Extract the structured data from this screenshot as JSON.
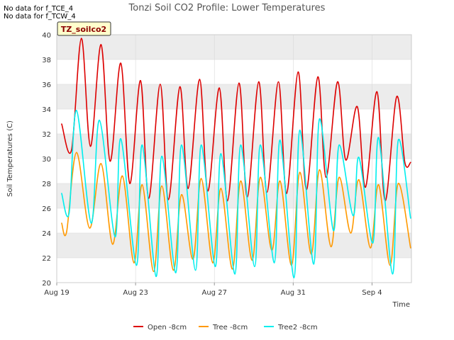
{
  "notices": [
    "No data for f_TCE_4",
    "No data for f_TCW_4"
  ],
  "badge": "TZ_soilco2",
  "colors": {
    "open": "#dd0000",
    "tree": "#ff9900",
    "tree2": "#00eeee",
    "band": "#ececec",
    "grid": "#d8d8d8"
  },
  "chart_data": {
    "type": "line",
    "title": "Tonzi Soil CO2 Profile: Lower Temperatures",
    "xlabel": "Time",
    "ylabel": "Soil Temperatures (C)",
    "ylim": [
      20,
      40
    ],
    "yticks": [
      20,
      22,
      24,
      26,
      28,
      30,
      32,
      34,
      36,
      38,
      40
    ],
    "xlim": [
      "2019-08-19",
      "2019-09-06"
    ],
    "xticks": [
      {
        "date": "2019-08-19",
        "label": "Aug 19"
      },
      {
        "date": "2019-08-23",
        "label": "Aug 23"
      },
      {
        "date": "2019-08-27",
        "label": "Aug 27"
      },
      {
        "date": "2019-08-31",
        "label": "Aug 31"
      },
      {
        "date": "2019-09-04",
        "label": "Sep 4"
      }
    ],
    "grid": true,
    "legend_position": "bottom",
    "series": [
      {
        "name": "Open -8cm",
        "color": "#dd0000",
        "x": [
          "2019-08-19 06:00",
          "2019-08-19 18:00",
          "2019-08-20 06:00",
          "2019-08-20 17:00",
          "2019-08-21 06:00",
          "2019-08-21 17:00",
          "2019-08-22 06:00",
          "2019-08-22 17:00",
          "2019-08-23 06:00",
          "2019-08-23 16:00",
          "2019-08-24 06:00",
          "2019-08-24 16:00",
          "2019-08-25 06:00",
          "2019-08-25 16:00",
          "2019-08-26 06:00",
          "2019-08-26 16:00",
          "2019-08-27 06:00",
          "2019-08-27 16:00",
          "2019-08-28 06:00",
          "2019-08-28 16:00",
          "2019-08-29 06:00",
          "2019-08-29 16:00",
          "2019-08-30 06:00",
          "2019-08-30 16:00",
          "2019-08-31 06:00",
          "2019-08-31 16:00",
          "2019-09-01 06:00",
          "2019-09-01 16:00",
          "2019-09-02 06:00",
          "2019-09-02 16:00",
          "2019-09-03 06:00",
          "2019-09-03 16:00",
          "2019-09-04 06:00",
          "2019-09-04 16:00",
          "2019-09-05 06:00",
          "2019-09-05 16:00",
          "2019-09-05 23:00"
        ],
        "y": [
          32.8,
          30.7,
          39.7,
          31.0,
          39.2,
          29.8,
          37.7,
          28.0,
          36.3,
          26.8,
          36.0,
          26.7,
          35.8,
          27.6,
          36.4,
          27.4,
          35.7,
          26.6,
          36.1,
          26.9,
          36.2,
          27.3,
          36.2,
          27.2,
          37.0,
          27.5,
          36.6,
          28.5,
          36.2,
          29.9,
          34.2,
          27.7,
          35.4,
          26.6,
          35.0,
          29.7,
          29.7
        ]
      },
      {
        "name": "Tree -8cm",
        "color": "#ff9900",
        "x": [
          "2019-08-19 06:00",
          "2019-08-19 12:00",
          "2019-08-20 00:00",
          "2019-08-20 16:00",
          "2019-08-21 06:00",
          "2019-08-21 20:00",
          "2019-08-22 08:00",
          "2019-08-22 22:00",
          "2019-08-23 08:00",
          "2019-08-23 22:00",
          "2019-08-24 08:00",
          "2019-08-24 22:00",
          "2019-08-25 08:00",
          "2019-08-25 22:00",
          "2019-08-26 08:00",
          "2019-08-26 22:00",
          "2019-08-27 08:00",
          "2019-08-27 22:00",
          "2019-08-28 08:00",
          "2019-08-28 22:00",
          "2019-08-29 08:00",
          "2019-08-29 22:00",
          "2019-08-30 08:00",
          "2019-08-30 22:00",
          "2019-08-31 08:00",
          "2019-08-31 22:00",
          "2019-09-01 08:00",
          "2019-09-01 22:00",
          "2019-09-02 08:00",
          "2019-09-02 22:00",
          "2019-09-03 08:00",
          "2019-09-03 22:00",
          "2019-09-04 08:00",
          "2019-09-04 22:00",
          "2019-09-05 08:00",
          "2019-09-05 23:00"
        ],
        "y": [
          24.8,
          24.1,
          30.5,
          24.4,
          29.6,
          23.1,
          28.6,
          21.6,
          27.9,
          20.9,
          27.8,
          21.0,
          27.1,
          21.9,
          28.4,
          21.6,
          27.6,
          21.1,
          28.2,
          21.8,
          28.5,
          22.6,
          28.2,
          21.4,
          28.9,
          22.3,
          29.1,
          22.9,
          28.5,
          24.0,
          28.3,
          22.8,
          27.9,
          21.4,
          28.0,
          22.8
        ]
      },
      {
        "name": "Tree2 -8cm",
        "color": "#00eeee",
        "x": [
          "2019-08-19 06:00",
          "2019-08-19 15:00",
          "2019-08-20 00:00",
          "2019-08-20 18:00",
          "2019-08-21 04:00",
          "2019-08-21 23:00",
          "2019-08-22 06:00",
          "2019-08-23 01:00",
          "2019-08-23 08:00",
          "2019-08-24 01:00",
          "2019-08-24 08:00",
          "2019-08-25 01:00",
          "2019-08-25 08:00",
          "2019-08-26 01:00",
          "2019-08-26 08:00",
          "2019-08-27 01:00",
          "2019-08-27 08:00",
          "2019-08-28 01:00",
          "2019-08-28 08:00",
          "2019-08-29 01:00",
          "2019-08-29 08:00",
          "2019-08-30 01:00",
          "2019-08-30 08:00",
          "2019-08-31 01:00",
          "2019-08-31 08:00",
          "2019-09-01 01:00",
          "2019-09-01 08:00",
          "2019-09-02 01:00",
          "2019-09-02 08:00",
          "2019-09-03 01:00",
          "2019-09-03 08:00",
          "2019-09-04 01:00",
          "2019-09-04 08:00",
          "2019-09-05 01:00",
          "2019-09-05 08:00",
          "2019-09-05 23:00"
        ],
        "y": [
          27.2,
          25.6,
          33.9,
          24.8,
          33.1,
          23.7,
          31.6,
          21.4,
          31.1,
          20.5,
          30.2,
          20.8,
          31.1,
          21.0,
          31.1,
          21.3,
          30.4,
          20.7,
          31.1,
          21.3,
          31.1,
          21.6,
          31.5,
          20.4,
          32.3,
          21.5,
          33.2,
          24.2,
          31.1,
          25.4,
          30.1,
          23.2,
          31.7,
          20.7,
          31.5,
          25.2
        ]
      }
    ]
  }
}
